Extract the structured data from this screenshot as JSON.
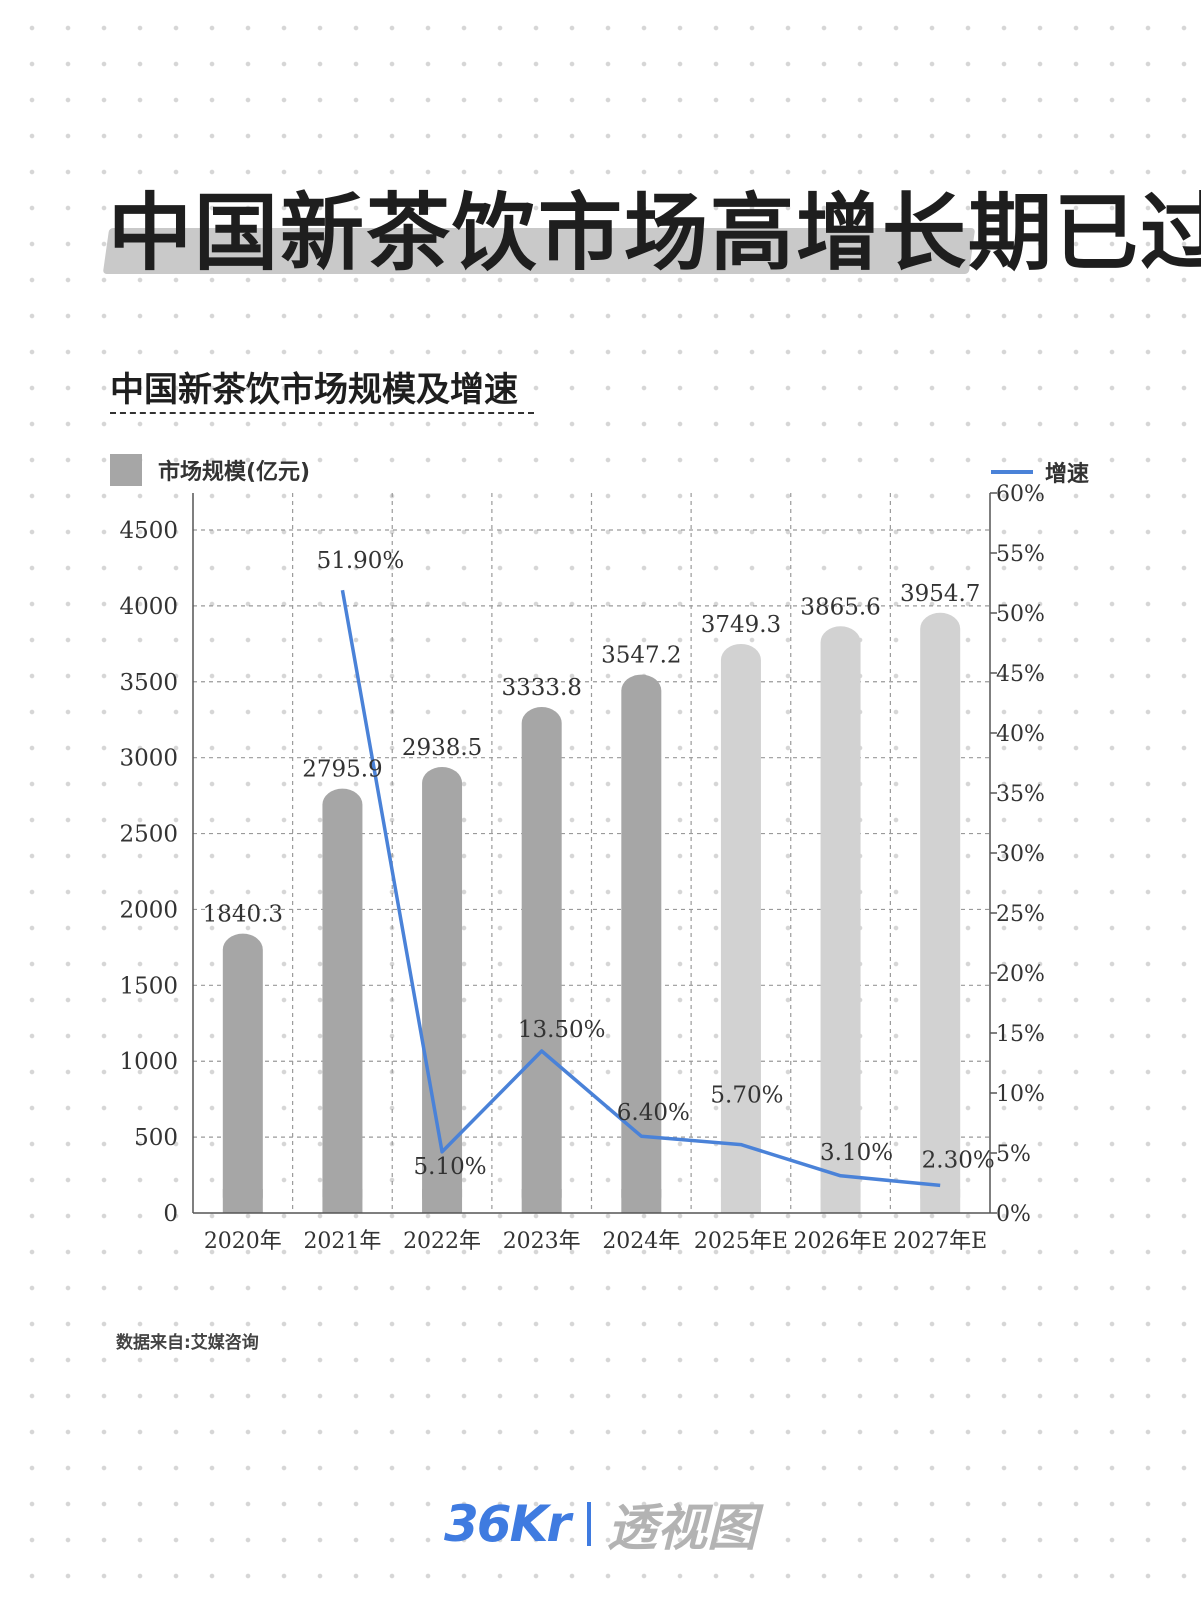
{
  "header": {
    "title": "中国新茶饮市场高增长期已过",
    "subtitle": "中国新茶饮市场规模及增速"
  },
  "legend": {
    "bar_label": "市场规模(亿元)",
    "line_label": "增速"
  },
  "source": "数据来自:艾媒咨询",
  "logo": {
    "brand": "36Kr",
    "product": "透视图"
  },
  "colors": {
    "bar_actual": "#a6a6a6",
    "bar_estimate": "#d2d2d2",
    "line": "#4a82d8"
  },
  "chart_data": {
    "type": "bar",
    "categories": [
      "2020年",
      "2021年",
      "2022年",
      "2023年",
      "2024年",
      "2025年E",
      "2026年E",
      "2027年E"
    ],
    "series": [
      {
        "name": "市场规模(亿元)",
        "type": "bar",
        "values": [
          1840.3,
          2795.9,
          2938.5,
          3333.8,
          3547.2,
          3749.3,
          3865.6,
          3954.7
        ],
        "labels": [
          "1840.3",
          "2795.9",
          "2938.5",
          "3333.8",
          "3547.2",
          "3749.3",
          "3865.6",
          "3954.7"
        ],
        "estimated": [
          false,
          false,
          false,
          false,
          false,
          true,
          true,
          true
        ]
      },
      {
        "name": "增速",
        "type": "line",
        "axis": "right",
        "values": [
          null,
          51.9,
          5.1,
          13.5,
          6.4,
          5.7,
          3.1,
          2.3
        ],
        "labels": [
          null,
          "51.90%",
          "5.10%",
          "13.50%",
          "6.40%",
          "5.70%",
          "3.10%",
          "2.30%"
        ]
      }
    ],
    "y_left": {
      "ylim": [
        0,
        4500
      ],
      "ticks": [
        0,
        500,
        1000,
        1500,
        2000,
        2500,
        3000,
        3500,
        4000,
        4500
      ],
      "tick_labels": [
        "0",
        "500",
        "1000",
        "1500",
        "2000",
        "2500",
        "3000",
        "3500",
        "4000",
        "4500"
      ]
    },
    "y_right": {
      "ylim": [
        0,
        60
      ],
      "ticks": [
        0,
        5,
        10,
        15,
        20,
        25,
        30,
        35,
        40,
        45,
        50,
        55,
        60
      ],
      "tick_labels": [
        "0%",
        "5%",
        "10%",
        "15%",
        "20%",
        "25%",
        "30%",
        "35%",
        "40%",
        "45%",
        "50%",
        "55%",
        "60%"
      ]
    },
    "grid": true,
    "legend_position": "top"
  }
}
